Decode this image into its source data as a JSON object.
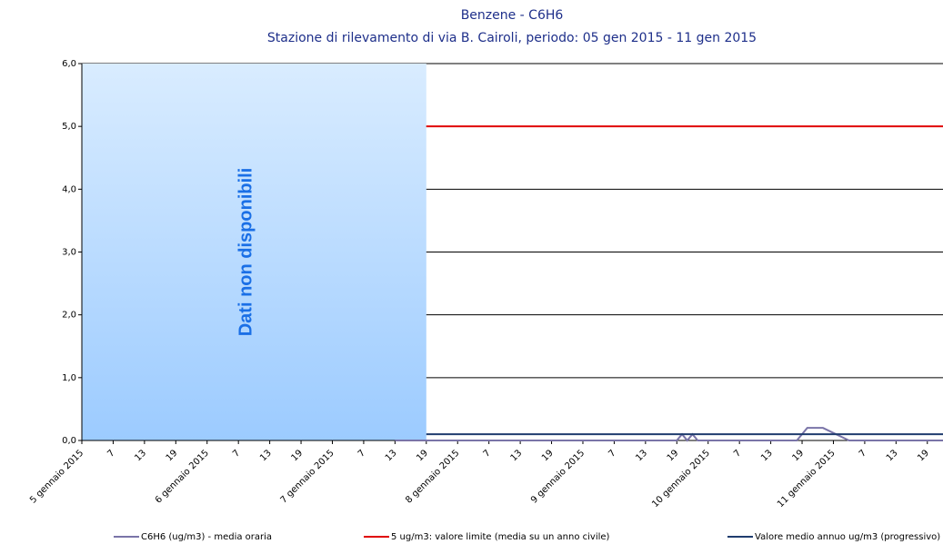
{
  "chart_data": {
    "type": "line",
    "title": "Benzene - C6H6",
    "subtitle": "Stazione di rilevamento di via B. Cairoli, periodo: 05 gen 2015 - 11 gen 2015",
    "xlim": [
      1,
      166
    ],
    "xticks": [
      {
        "value": 1,
        "label": "5 gennaio 2015"
      },
      {
        "value": 7,
        "label": "7"
      },
      {
        "value": 13,
        "label": "13"
      },
      {
        "value": 19,
        "label": "19"
      },
      {
        "value": 25,
        "label": "6 gennaio 2015"
      },
      {
        "value": 31,
        "label": "7"
      },
      {
        "value": 37,
        "label": "13"
      },
      {
        "value": 43,
        "label": "19"
      },
      {
        "value": 49,
        "label": "7 gennaio 2015"
      },
      {
        "value": 55,
        "label": "7"
      },
      {
        "value": 61,
        "label": "13"
      },
      {
        "value": 67,
        "label": "19"
      },
      {
        "value": 73,
        "label": "8 gennaio 2015"
      },
      {
        "value": 79,
        "label": "7"
      },
      {
        "value": 85,
        "label": "13"
      },
      {
        "value": 91,
        "label": "19"
      },
      {
        "value": 97,
        "label": "9 gennaio 2015"
      },
      {
        "value": 103,
        "label": "7"
      },
      {
        "value": 109,
        "label": "13"
      },
      {
        "value": 115,
        "label": "19"
      },
      {
        "value": 121,
        "label": "10 gennaio 2015"
      },
      {
        "value": 127,
        "label": "7"
      },
      {
        "value": 133,
        "label": "13"
      },
      {
        "value": 139,
        "label": "19"
      },
      {
        "value": 145,
        "label": "11 gennaio 2015"
      },
      {
        "value": 151,
        "label": "7"
      },
      {
        "value": 157,
        "label": "13"
      },
      {
        "value": 163,
        "label": "19"
      }
    ],
    "ylim": [
      0,
      6
    ],
    "yticks": [
      {
        "value": 0,
        "label": "0,0"
      },
      {
        "value": 1,
        "label": "1,0"
      },
      {
        "value": 2,
        "label": "2,0"
      },
      {
        "value": 3,
        "label": "3,0"
      },
      {
        "value": 4,
        "label": "4,0"
      },
      {
        "value": 5,
        "label": "5,0"
      },
      {
        "value": 6,
        "label": "6,0"
      }
    ],
    "grid": true,
    "unavailable": {
      "label": "Dati non disponibili",
      "range": [
        1,
        67
      ]
    },
    "series": [
      {
        "name": "C6H6 (ug/m3)  - media oraria",
        "color": "#7a74a8",
        "x": [
          61,
          115,
          116,
          117,
          118,
          119,
          138,
          140,
          143,
          148,
          166
        ],
        "values": [
          0,
          0,
          0.1,
          0,
          0.1,
          0,
          0,
          0.2,
          0.2,
          0,
          0
        ]
      },
      {
        "name": "5 ug/m3: valore limite (media su un anno civile)",
        "color": "#e00000",
        "x": [
          67,
          166
        ],
        "values": [
          5,
          5
        ]
      },
      {
        "name": "Valore medio annuo ug/m3 (progressivo)",
        "color": "#1f3c6e",
        "x": [
          67,
          166
        ],
        "values": [
          0.1,
          0.1
        ]
      }
    ],
    "legend": "bottom"
  }
}
